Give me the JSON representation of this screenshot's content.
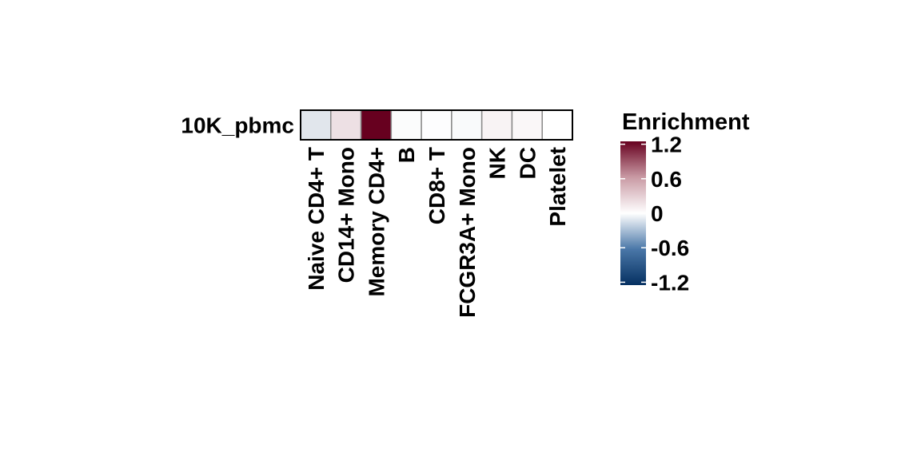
{
  "chart_data": {
    "type": "heatmap",
    "rows": [
      "10K_pbmc"
    ],
    "columns": [
      "Naive CD4+ T",
      "CD14+ Mono",
      "Memory CD4+",
      "B",
      "CD8+ T",
      "FCGR3A+ Mono",
      "NK",
      "DC",
      "Platelet"
    ],
    "values": [
      [
        -0.15,
        0.15,
        1.25,
        -0.02,
        -0.01,
        -0.03,
        0.06,
        0.04,
        0.0
      ]
    ],
    "legend": {
      "title": "Enrichment",
      "ticks": [
        "1.2",
        "0.6",
        "0",
        "-0.6",
        "-1.2"
      ],
      "tick_values": [
        1.2,
        0.6,
        0,
        -0.6,
        -1.2
      ],
      "range": [
        -1.25,
        1.25
      ],
      "position": "right"
    },
    "colors": {
      "low": "#053061",
      "mid": "#ffffff",
      "high": "#67001f"
    }
  }
}
